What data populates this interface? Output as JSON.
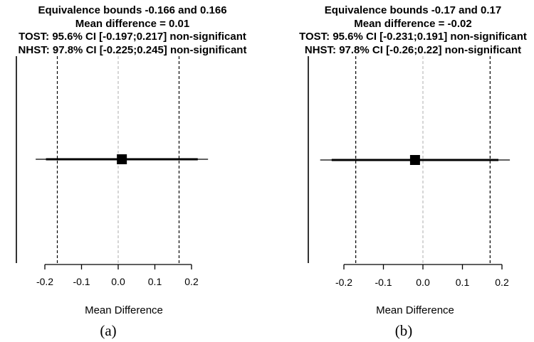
{
  "chart_data": [
    {
      "type": "forest",
      "caption": "(a)",
      "title_lines": [
        "Equivalence bounds -0.166 and 0.166",
        "Mean difference = 0.01",
        "TOST: 95.6% CI [-0.197;0.217] non-significant",
        "NHST: 97.8% CI [-0.225;0.245] non-significant"
      ],
      "xlabel": "Mean Difference",
      "xlim": [
        -0.25,
        0.25
      ],
      "x_ticks": [
        -0.2,
        -0.1,
        0.0,
        0.1,
        0.2
      ],
      "x_tick_labels": [
        "-0.2",
        "-0.1",
        "0.0",
        "0.1",
        "0.2"
      ],
      "mean_difference": 0.01,
      "equivalence_bounds": [
        -0.166,
        0.166
      ],
      "tost_ci": [
        -0.197,
        0.217
      ],
      "nhst_ci": [
        -0.225,
        0.245
      ],
      "zero_line": 0,
      "colors": {
        "bounds": "#000000",
        "zero": "#bbbbbb",
        "ci": "#000000",
        "point": "#000000"
      }
    },
    {
      "type": "forest",
      "caption": "(b)",
      "title_lines": [
        "Equivalence bounds -0.17 and 0.17",
        "Mean difference = -0.02",
        "TOST: 95.6% CI [-0.231;0.191] non-significant",
        "NHST: 97.8% CI [-0.26;0.22] non-significant"
      ],
      "xlabel": "Mean Difference",
      "xlim": [
        -0.26,
        0.22
      ],
      "x_ticks": [
        -0.2,
        -0.1,
        0.0,
        0.1,
        0.2
      ],
      "x_tick_labels": [
        "-0.2",
        "-0.1",
        "0.0",
        "0.1",
        "0.2"
      ],
      "mean_difference": -0.02,
      "equivalence_bounds": [
        -0.17,
        0.17
      ],
      "tost_ci": [
        -0.231,
        0.191
      ],
      "nhst_ci": [
        -0.26,
        0.22
      ],
      "zero_line": 0,
      "colors": {
        "bounds": "#000000",
        "zero": "#bbbbbb",
        "ci": "#000000",
        "point": "#000000"
      }
    }
  ]
}
